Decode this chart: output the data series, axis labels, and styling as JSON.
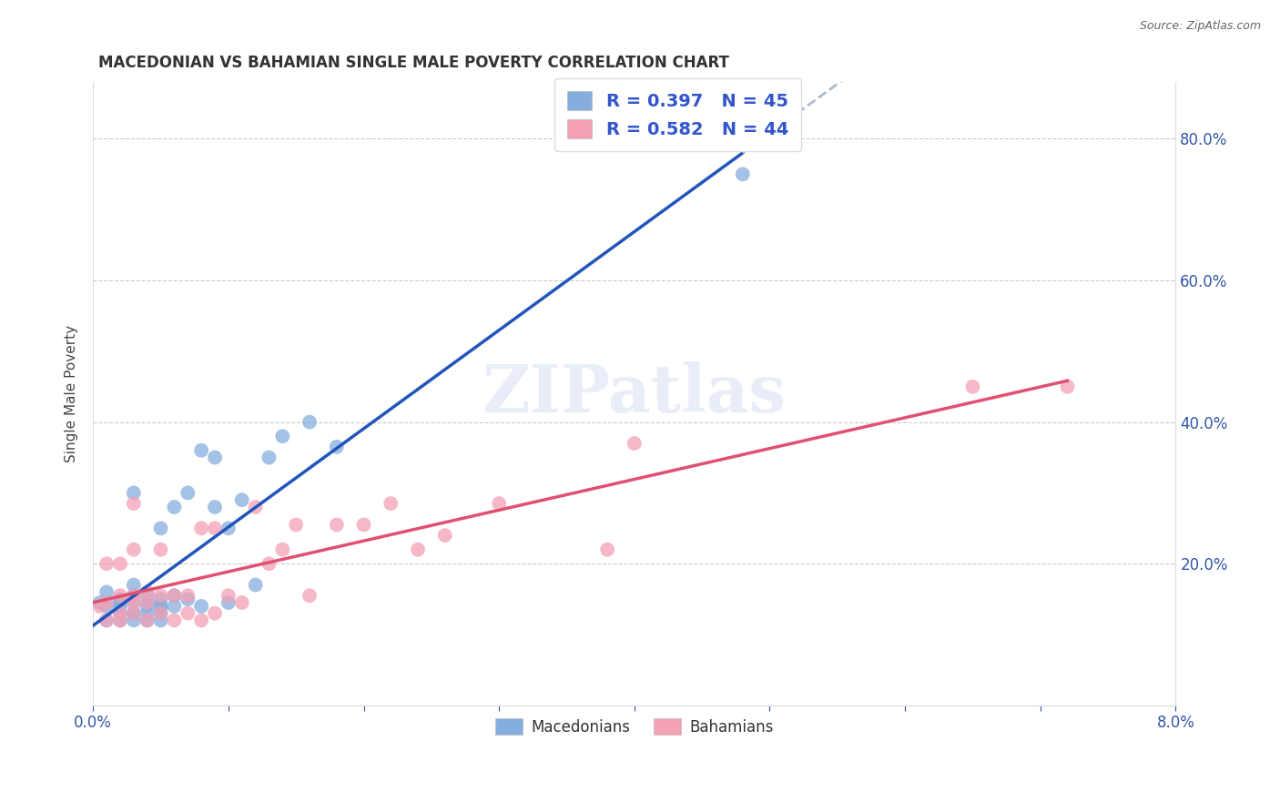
{
  "title": "MACEDONIAN VS BAHAMIAN SINGLE MALE POVERTY CORRELATION CHART",
  "source": "Source: ZipAtlas.com",
  "ylabel_label": "Single Male Poverty",
  "xlim": [
    0.0,
    0.08
  ],
  "ylim": [
    0.0,
    0.88
  ],
  "xticks": [
    0.0,
    0.01,
    0.02,
    0.03,
    0.04,
    0.05,
    0.06,
    0.07,
    0.08
  ],
  "xtick_labels": [
    "0.0%",
    "",
    "",
    "",
    "",
    "",
    "",
    "",
    "8.0%"
  ],
  "ytick_positions": [
    0.0,
    0.2,
    0.4,
    0.6,
    0.8
  ],
  "ytick_labels_right": [
    "",
    "20.0%",
    "40.0%",
    "60.0%",
    "80.0%"
  ],
  "grid_lines": [
    0.2,
    0.4,
    0.6,
    0.8
  ],
  "macedonian_color": "#85aede",
  "bahamian_color": "#f4a0b5",
  "macedonian_line_color": "#2255bb",
  "bahamian_line_color": "#e05070",
  "dashed_color": "#aabbcc",
  "legend_text1": "R = 0.397   N = 45",
  "legend_text2": "R = 0.582   N = 44",
  "legend_color": "#3355cc",
  "watermark": "ZIPatlas",
  "bottom_legend_labels": [
    "Macedonians",
    "Bahamians"
  ],
  "macedonian_x": [
    0.0005,
    0.001,
    0.001,
    0.001,
    0.002,
    0.002,
    0.002,
    0.002,
    0.002,
    0.003,
    0.003,
    0.003,
    0.003,
    0.003,
    0.003,
    0.003,
    0.004,
    0.004,
    0.004,
    0.004,
    0.004,
    0.005,
    0.005,
    0.005,
    0.005,
    0.005,
    0.005,
    0.006,
    0.006,
    0.006,
    0.007,
    0.007,
    0.008,
    0.008,
    0.009,
    0.009,
    0.01,
    0.01,
    0.011,
    0.012,
    0.013,
    0.014,
    0.016,
    0.018,
    0.048
  ],
  "macedonian_y": [
    0.145,
    0.12,
    0.14,
    0.16,
    0.12,
    0.13,
    0.14,
    0.145,
    0.15,
    0.12,
    0.13,
    0.13,
    0.145,
    0.155,
    0.17,
    0.3,
    0.12,
    0.13,
    0.14,
    0.145,
    0.155,
    0.12,
    0.13,
    0.14,
    0.14,
    0.15,
    0.25,
    0.14,
    0.155,
    0.28,
    0.15,
    0.3,
    0.14,
    0.36,
    0.28,
    0.35,
    0.145,
    0.25,
    0.29,
    0.17,
    0.35,
    0.38,
    0.4,
    0.365,
    0.75
  ],
  "bahamian_x": [
    0.0005,
    0.001,
    0.001,
    0.001,
    0.002,
    0.002,
    0.002,
    0.002,
    0.003,
    0.003,
    0.003,
    0.003,
    0.003,
    0.004,
    0.004,
    0.004,
    0.005,
    0.005,
    0.005,
    0.006,
    0.006,
    0.007,
    0.007,
    0.008,
    0.008,
    0.009,
    0.009,
    0.01,
    0.011,
    0.012,
    0.013,
    0.014,
    0.015,
    0.016,
    0.018,
    0.02,
    0.022,
    0.024,
    0.026,
    0.03,
    0.038,
    0.04,
    0.065,
    0.072
  ],
  "bahamian_y": [
    0.14,
    0.12,
    0.145,
    0.2,
    0.12,
    0.13,
    0.155,
    0.2,
    0.13,
    0.145,
    0.155,
    0.22,
    0.285,
    0.12,
    0.145,
    0.16,
    0.13,
    0.155,
    0.22,
    0.12,
    0.155,
    0.13,
    0.155,
    0.12,
    0.25,
    0.13,
    0.25,
    0.155,
    0.145,
    0.28,
    0.2,
    0.22,
    0.255,
    0.155,
    0.255,
    0.255,
    0.285,
    0.22,
    0.24,
    0.285,
    0.22,
    0.37,
    0.45,
    0.45
  ]
}
